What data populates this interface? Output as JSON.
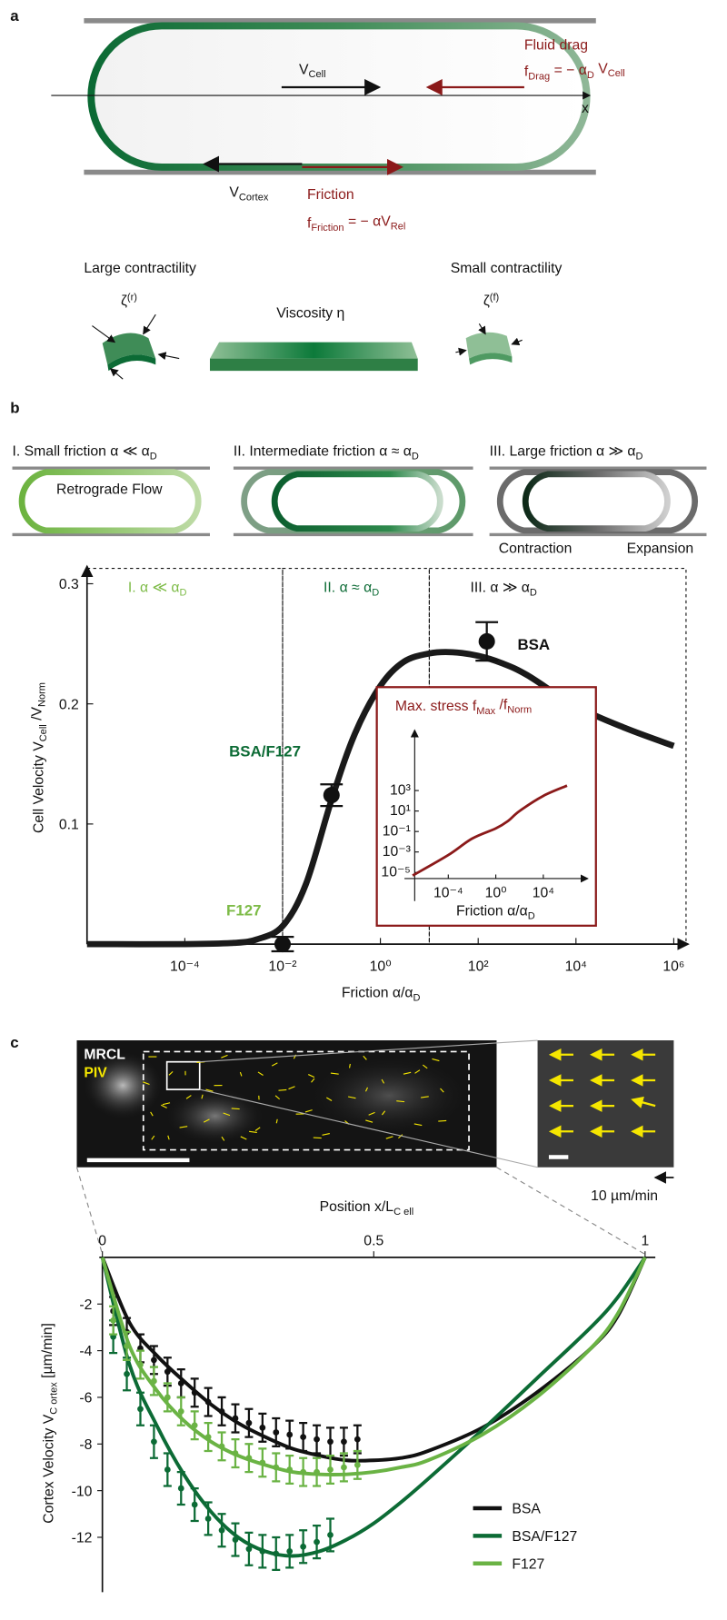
{
  "panel_a": {
    "label": "a",
    "v_cell": [
      "V",
      "Cell"
    ],
    "fluid_drag": "Fluid drag",
    "f_drag": [
      "f",
      "Drag",
      "  =  − α",
      "D",
      " V",
      "Cell"
    ],
    "x_axis": "x",
    "v_cortex": [
      "V",
      "Cortex"
    ],
    "friction": "Friction",
    "f_friction": [
      "f",
      "Friction",
      "  =  − αV",
      "Rel"
    ],
    "large": "Large contractility",
    "small": "Small contractility",
    "zeta_r": [
      "ζ",
      "(r)"
    ],
    "viscosity": "Viscosity   η",
    "zeta_f": [
      "ζ",
      "(f)"
    ]
  },
  "panel_b": {
    "label": "b",
    "heading_1": [
      "I. Small friction  α ≪ α",
      "D"
    ],
    "heading_2": [
      "II. Intermediate friction α ≈ α",
      "D"
    ],
    "heading_3": [
      "III. Large friction  α ≫ α",
      "D"
    ],
    "retrograde": "Retrograde Flow",
    "contraction": "Contraction",
    "expansion": "Expansion"
  },
  "panel_c": {
    "label": "c",
    "channel": "MRCL",
    "overlay": "PIV",
    "scale": "10 µm/min"
  },
  "chart_data": [
    {
      "type": "line",
      "x_label": [
        "Friction    α/α",
        "D"
      ],
      "y_label": [
        "Cell Velocity  V",
        "Cell",
        " /V",
        "Norm"
      ],
      "log_x": true,
      "xlim": [
        1e-06,
        1000000
      ],
      "ylim": [
        0,
        0.3
      ],
      "xticks": [
        {
          "value": 0.0001,
          "label": "10⁻⁴"
        },
        {
          "value": 0.01,
          "label": "10⁻²"
        },
        {
          "value": 1,
          "label": "10⁰"
        },
        {
          "value": 100,
          "label": "10²"
        },
        {
          "value": 10000,
          "label": "10⁴"
        },
        {
          "value": 1000000,
          "label": "10⁶"
        }
      ],
      "yticks": [
        0.1,
        0.2,
        0.3
      ],
      "color": "#1a1a1a",
      "x": [
        1e-06,
        0.0001,
        0.001,
        0.003,
        0.01,
        0.03,
        0.1,
        0.3,
        1,
        3,
        10,
        30,
        100,
        300,
        1000,
        10000,
        100000,
        1000000
      ],
      "values": [
        0,
        0,
        0.001,
        0.004,
        0.015,
        0.05,
        0.12,
        0.175,
        0.215,
        0.235,
        0.242,
        0.243,
        0.24,
        0.234,
        0.224,
        0.198,
        0.18,
        0.165
      ],
      "regions": [
        {
          "label": [
            "I.  α ≪ α",
            "D"
          ],
          "color": "#7dbb47",
          "from": 1e-06,
          "to": 0.01
        },
        {
          "label": [
            "II.  α ≈ α",
            "D"
          ],
          "color": "#0c6b35",
          "from": 0.01,
          "to": 10
        },
        {
          "label": [
            "III.  α ≫ α",
            "D"
          ],
          "color": "#111111",
          "from": 10,
          "to": 1000000
        }
      ],
      "points": [
        {
          "name": "F127",
          "color": "#7dbb47",
          "x": 0.01,
          "value": 0,
          "error": 0.006
        },
        {
          "name": "BSA/F127",
          "color": "#0c6b35",
          "x": 0.1,
          "value": 0.124,
          "error": 0.009
        },
        {
          "name": "BSA",
          "color": "#111111",
          "x": 150,
          "value": 0.252,
          "error": 0.016
        }
      ]
    },
    {
      "type": "line",
      "title": [
        "Max. stress  f",
        "Max",
        " /f",
        "Norm"
      ],
      "x_label": [
        "Friction  α/α",
        "D"
      ],
      "log_x": true,
      "log_y": true,
      "xlim": [
        1e-07,
        100000000
      ],
      "ylim": [
        1e-06,
        1000000000
      ],
      "xticks": [
        {
          "value": 0.0001,
          "label": "10⁻⁴"
        },
        {
          "value": 1,
          "label": "10⁰"
        },
        {
          "value": 10000,
          "label": "10⁴"
        }
      ],
      "yticks": [
        {
          "value": 1e-05,
          "label": "10⁻⁵"
        },
        {
          "value": 0.001,
          "label": "10⁻³"
        },
        {
          "value": 0.1,
          "label": "10⁻¹"
        },
        {
          "value": 10,
          "label": "10¹"
        },
        {
          "value": 1000,
          "label": "10³"
        }
      ],
      "color": "#8b1a1a",
      "x": [
        1e-07,
        0.0001,
        0.01,
        1,
        10,
        100,
        10000,
        1000000
      ],
      "values": [
        5e-06,
        0.0005,
        0.02,
        0.2,
        1,
        10,
        300,
        3000
      ]
    },
    {
      "type": "line",
      "x_label": [
        "Position  x/L",
        "C ell"
      ],
      "y_label": [
        "Cortex Velocity  V",
        "C ortex",
        " [µm/min]"
      ],
      "xlim": [
        0,
        1
      ],
      "ylim": [
        -14,
        0
      ],
      "xticks": [
        0,
        0.5,
        1
      ],
      "yticks": [
        -2,
        -4,
        -6,
        -8,
        -10,
        -12
      ],
      "fit_x": [
        0,
        0.05,
        0.1,
        0.15,
        0.2,
        0.25,
        0.3,
        0.35,
        0.4,
        0.45,
        0.5,
        0.55,
        0.6,
        0.7,
        0.8,
        0.9,
        0.95,
        1
      ],
      "series": [
        {
          "name": "BSA",
          "color": "#111111",
          "fit": [
            0,
            -2.8,
            -4.2,
            -5.3,
            -6.3,
            -7.1,
            -7.7,
            -8.2,
            -8.5,
            -8.7,
            -8.7,
            -8.6,
            -8.3,
            -7.3,
            -5.8,
            -3.9,
            -2.5,
            0
          ],
          "x": [
            0.02,
            0.045,
            0.07,
            0.095,
            0.12,
            0.145,
            0.17,
            0.195,
            0.22,
            0.245,
            0.27,
            0.295,
            0.32,
            0.345,
            0.37,
            0.395,
            0.42,
            0.445,
            0.47
          ],
          "values": [
            -2.3,
            -3.2,
            -3.9,
            -4.4,
            -4.9,
            -5.4,
            -5.8,
            -6.2,
            -6.6,
            -6.9,
            -7.1,
            -7.3,
            -7.5,
            -7.6,
            -7.7,
            -7.8,
            -7.9,
            -7.9,
            -7.8
          ],
          "errors": [
            0.6,
            0.6,
            0.6,
            0.6,
            0.6,
            0.6,
            0.6,
            0.6,
            0.6,
            0.6,
            0.6,
            0.6,
            0.6,
            0.6,
            0.6,
            0.6,
            0.6,
            0.6,
            0.6
          ]
        },
        {
          "name": "BSA/F127",
          "color": "#0c6b35",
          "fit": [
            0,
            -4.6,
            -7.2,
            -9.3,
            -10.9,
            -12,
            -12.6,
            -12.8,
            -12.6,
            -12.1,
            -11.4,
            -10.5,
            -9.5,
            -7.4,
            -5.2,
            -3,
            -1.7,
            0
          ],
          "x": [
            0.02,
            0.045,
            0.07,
            0.095,
            0.12,
            0.145,
            0.17,
            0.195,
            0.22,
            0.245,
            0.27,
            0.295,
            0.32,
            0.345,
            0.37,
            0.395,
            0.42
          ],
          "values": [
            -3.4,
            -5,
            -6.5,
            -7.9,
            -9.1,
            -9.9,
            -10.6,
            -11.2,
            -11.7,
            -12.1,
            -12.5,
            -12.6,
            -12.7,
            -12.6,
            -12.4,
            -12.2,
            -11.9
          ],
          "errors": [
            0.7,
            0.7,
            0.7,
            0.7,
            0.7,
            0.7,
            0.7,
            0.7,
            0.7,
            0.7,
            0.7,
            0.7,
            0.7,
            0.7,
            0.7,
            0.7,
            0.7
          ]
        },
        {
          "name": "F127",
          "color": "#6ab344",
          "fit": [
            0,
            -3.8,
            -5.7,
            -7,
            -7.9,
            -8.5,
            -8.9,
            -9.2,
            -9.3,
            -9.3,
            -9.2,
            -9,
            -8.7,
            -7.6,
            -6,
            -3.9,
            -2.4,
            0
          ],
          "x": [
            0.02,
            0.045,
            0.07,
            0.095,
            0.12,
            0.145,
            0.17,
            0.195,
            0.22,
            0.245,
            0.27,
            0.295,
            0.32,
            0.345,
            0.37,
            0.395,
            0.42,
            0.445,
            0.47
          ],
          "values": [
            -2.7,
            -3.8,
            -4.6,
            -5.3,
            -6,
            -6.6,
            -7.2,
            -7.7,
            -8.1,
            -8.4,
            -8.6,
            -8.8,
            -9,
            -9.1,
            -9.2,
            -9.2,
            -9.1,
            -9,
            -8.9
          ],
          "errors": [
            0.6,
            0.6,
            0.6,
            0.6,
            0.6,
            0.6,
            0.6,
            0.6,
            0.6,
            0.6,
            0.6,
            0.6,
            0.6,
            0.6,
            0.6,
            0.6,
            0.6,
            0.6,
            0.6
          ]
        }
      ]
    }
  ]
}
